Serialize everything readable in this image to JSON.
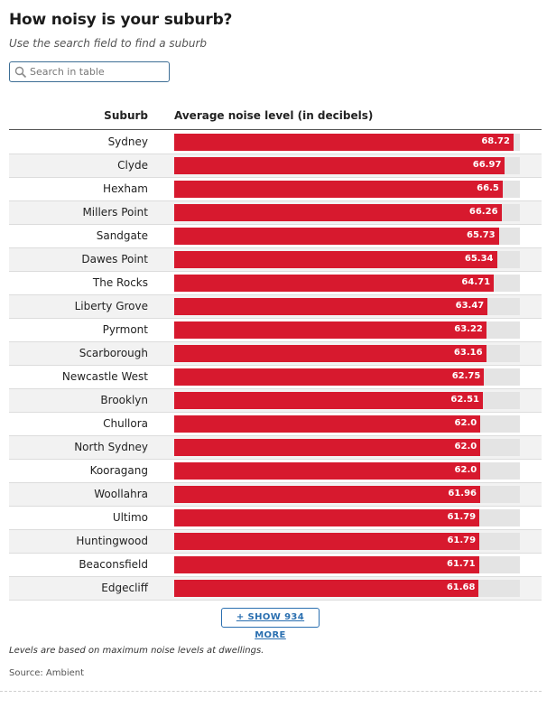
{
  "title": "How noisy is your suburb?",
  "subtitle": "Use the search field to find a suburb",
  "search": {
    "placeholder": "Search in table",
    "value": ""
  },
  "table": {
    "header_suburb": "Suburb",
    "header_value": "Average noise level (in decibels)"
  },
  "show_more_label": "+ SHOW 934 MORE",
  "note": "Levels are based on maximum noise levels at dwellings.",
  "source": "Source: Ambient",
  "colors": {
    "bar": "#d7192e",
    "track": "#e4e4e4",
    "link": "#2a6fb0"
  },
  "icons": {
    "search": "search-icon"
  },
  "chart_data": {
    "type": "bar",
    "orientation": "horizontal",
    "title": "How noisy is your suburb?",
    "xlabel": "Average noise level (in decibels)",
    "ylabel": "Suburb",
    "xlim": [
      0,
      70
    ],
    "categories": [
      "Sydney",
      "Clyde",
      "Hexham",
      "Millers Point",
      "Sandgate",
      "Dawes Point",
      "The Rocks",
      "Liberty Grove",
      "Pyrmont",
      "Scarborough",
      "Newcastle West",
      "Brooklyn",
      "Chullora",
      "North Sydney",
      "Kooragang",
      "Woollahra",
      "Ultimo",
      "Huntingwood",
      "Beaconsfield",
      "Edgecliff"
    ],
    "values": [
      68.72,
      66.97,
      66.5,
      66.26,
      65.73,
      65.34,
      64.71,
      63.47,
      63.22,
      63.16,
      62.75,
      62.51,
      62.0,
      62.0,
      62.0,
      61.96,
      61.79,
      61.79,
      61.71,
      61.68
    ],
    "value_labels": [
      "68.72",
      "66.97",
      "66.5",
      "66.26",
      "65.73",
      "65.34",
      "64.71",
      "63.47",
      "63.22",
      "63.16",
      "62.75",
      "62.51",
      "62.0",
      "62.0",
      "62.0",
      "61.96",
      "61.79",
      "61.79",
      "61.71",
      "61.68"
    ]
  }
}
